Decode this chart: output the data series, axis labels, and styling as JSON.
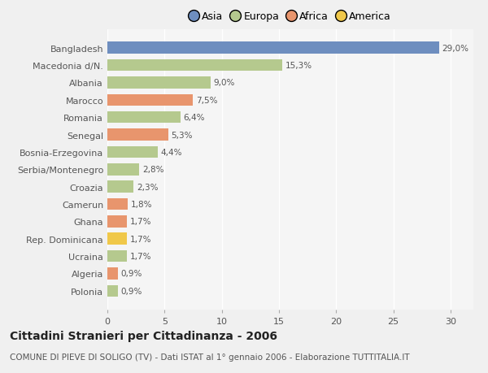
{
  "categories": [
    "Polonia",
    "Algeria",
    "Ucraina",
    "Rep. Dominicana",
    "Ghana",
    "Camerun",
    "Croazia",
    "Serbia/Montenegro",
    "Bosnia-Erzegovina",
    "Senegal",
    "Romania",
    "Marocco",
    "Albania",
    "Macedonia d/N.",
    "Bangladesh"
  ],
  "values": [
    0.9,
    0.9,
    1.7,
    1.7,
    1.7,
    1.8,
    2.3,
    2.8,
    4.4,
    5.3,
    6.4,
    7.5,
    9.0,
    15.3,
    29.0
  ],
  "labels": [
    "0,9%",
    "0,9%",
    "1,7%",
    "1,7%",
    "1,7%",
    "1,8%",
    "2,3%",
    "2,8%",
    "4,4%",
    "5,3%",
    "6,4%",
    "7,5%",
    "9,0%",
    "15,3%",
    "29,0%"
  ],
  "colors": [
    "#b5c98e",
    "#e8956d",
    "#b5c98e",
    "#f0c84a",
    "#e8956d",
    "#e8956d",
    "#b5c98e",
    "#b5c98e",
    "#b5c98e",
    "#e8956d",
    "#b5c98e",
    "#e8956d",
    "#b5c98e",
    "#b5c98e",
    "#6e8ebf"
  ],
  "legend_labels": [
    "Asia",
    "Europa",
    "Africa",
    "America"
  ],
  "legend_colors": [
    "#6e8ebf",
    "#b5c98e",
    "#e8956d",
    "#f0c84a"
  ],
  "xlim": [
    0,
    32
  ],
  "xticks": [
    0,
    5,
    10,
    15,
    20,
    25,
    30
  ],
  "title": "Cittadini Stranieri per Cittadinanza - 2006",
  "subtitle": "COMUNE DI PIEVE DI SOLIGO (TV) - Dati ISTAT al 1° gennaio 2006 - Elaborazione TUTTITALIA.IT",
  "bg_color": "#f0f0f0",
  "plot_bg_color": "#f5f5f5",
  "bar_height": 0.68,
  "title_fontsize": 10,
  "subtitle_fontsize": 7.5,
  "label_fontsize": 7.5,
  "tick_fontsize": 8,
  "legend_fontsize": 9
}
